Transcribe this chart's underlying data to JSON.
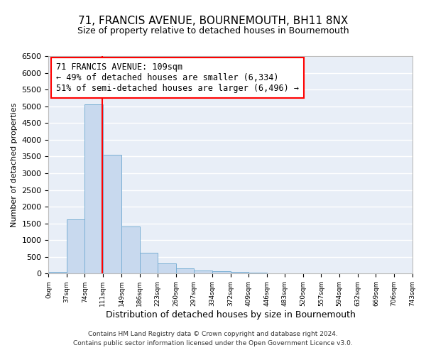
{
  "title": "71, FRANCIS AVENUE, BOURNEMOUTH, BH11 8NX",
  "subtitle": "Size of property relative to detached houses in Bournemouth",
  "xlabel": "Distribution of detached houses by size in Bournemouth",
  "ylabel": "Number of detached properties",
  "footer_line1": "Contains HM Land Registry data © Crown copyright and database right 2024.",
  "footer_line2": "Contains public sector information licensed under the Open Government Licence v3.0.",
  "annotation_line1": "71 FRANCIS AVENUE: 109sqm",
  "annotation_line2": "← 49% of detached houses are smaller (6,334)",
  "annotation_line3": "51% of semi-detached houses are larger (6,496) →",
  "bar_edges": [
    0,
    37,
    74,
    111,
    149,
    186,
    223,
    260,
    297,
    334,
    372,
    409,
    446,
    483,
    520,
    557,
    594,
    632,
    669,
    706,
    743
  ],
  "bar_heights": [
    50,
    1620,
    5050,
    3560,
    1400,
    620,
    300,
    150,
    100,
    70,
    50,
    30,
    10,
    5,
    3,
    2,
    1,
    1,
    1,
    1
  ],
  "bar_color": "#c8d9ee",
  "bar_edge_color": "#7aafd4",
  "property_line_x": 109,
  "property_line_color": "red",
  "ylim": [
    0,
    6500
  ],
  "yticks": [
    0,
    500,
    1000,
    1500,
    2000,
    2500,
    3000,
    3500,
    4000,
    4500,
    5000,
    5500,
    6000,
    6500
  ],
  "xtick_labels": [
    "0sqm",
    "37sqm",
    "74sqm",
    "111sqm",
    "149sqm",
    "186sqm",
    "223sqm",
    "260sqm",
    "297sqm",
    "334sqm",
    "372sqm",
    "409sqm",
    "446sqm",
    "483sqm",
    "520sqm",
    "557sqm",
    "594sqm",
    "632sqm",
    "669sqm",
    "706sqm",
    "743sqm"
  ],
  "background_color": "#e8eef7",
  "grid_color": "white"
}
